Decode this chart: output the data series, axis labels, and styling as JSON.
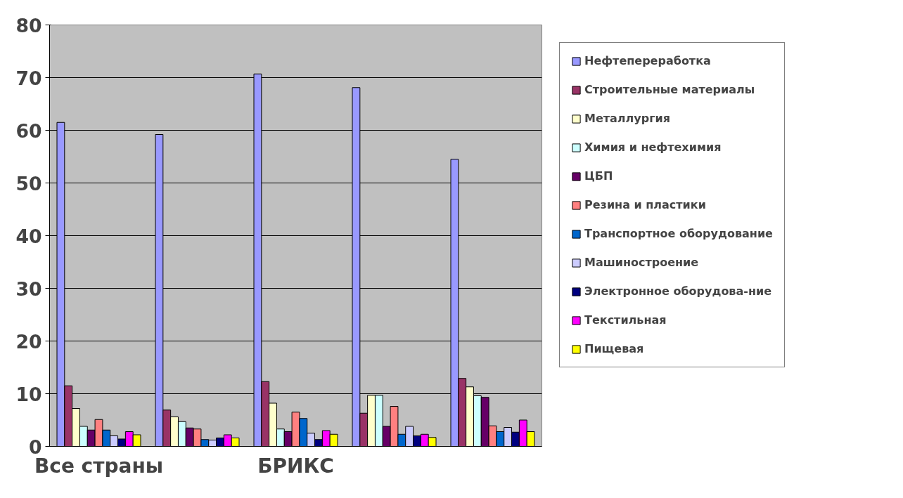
{
  "chart_data": {
    "type": "bar",
    "categories": [
      "Все страны",
      null,
      "БРИКС",
      null,
      null
    ],
    "series": [
      {
        "name": "Нефтепереработка",
        "color": "#9999ff",
        "values": [
          61.5,
          59.2,
          70.7,
          68.1,
          54.5
        ]
      },
      {
        "name": "Строительные материалы",
        "color": "#993366",
        "values": [
          11.5,
          6.9,
          12.3,
          6.3,
          12.9
        ]
      },
      {
        "name": "Металлургия",
        "color": "#ffffcc",
        "values": [
          7.2,
          5.6,
          8.2,
          9.7,
          11.3
        ]
      },
      {
        "name": "Химия и нефтехимия",
        "color": "#ccffff",
        "values": [
          3.8,
          4.7,
          3.3,
          9.7,
          9.6
        ]
      },
      {
        "name": "ЦБП",
        "color": "#660066",
        "values": [
          3.1,
          3.5,
          2.8,
          3.8,
          9.3
        ]
      },
      {
        "name": "Резина и пластики",
        "color": "#ff8080",
        "values": [
          5.1,
          3.3,
          6.5,
          7.6,
          3.9
        ]
      },
      {
        "name": "Транспортное оборудование",
        "color": "#0066cc",
        "values": [
          3.1,
          1.3,
          5.3,
          2.3,
          2.8
        ]
      },
      {
        "name": "Машиностроение",
        "color": "#ccccff",
        "values": [
          2.0,
          1.2,
          2.5,
          3.8,
          3.6
        ]
      },
      {
        "name": "Электронное оборудова-ние",
        "color": "#000080",
        "values": [
          1.4,
          1.6,
          1.3,
          2.0,
          2.7
        ]
      },
      {
        "name": "Текстильная",
        "color": "#ff00ff",
        "values": [
          2.8,
          2.2,
          3.0,
          2.3,
          5.0
        ]
      },
      {
        "name": "Пищевая",
        "color": "#ffff00",
        "values": [
          2.2,
          1.6,
          2.3,
          1.7,
          2.8
        ]
      }
    ],
    "ylim": [
      0,
      80
    ],
    "yticks": [
      0,
      10,
      20,
      30,
      40,
      50,
      60,
      70,
      80
    ],
    "grid": "y",
    "legend": "right"
  }
}
